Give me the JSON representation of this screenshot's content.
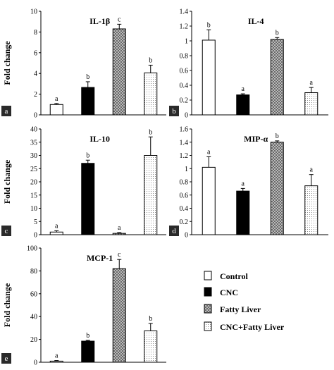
{
  "ylabel": "Fold change",
  "legend": {
    "entries": [
      {
        "label": "Control",
        "style": "white"
      },
      {
        "label": "CNC",
        "style": "black"
      },
      {
        "label": "Fatty Liver",
        "style": "crosshatch"
      },
      {
        "label": "CNC+Fatty Liver",
        "style": "dots"
      }
    ]
  },
  "chart_data": [
    {
      "type": "bar",
      "panel": "a",
      "title": "IL-1β",
      "categories": [
        "Control",
        "CNC",
        "Fatty Liver",
        "CNC+Fatty Liver"
      ],
      "values": [
        1,
        2.65,
        8.3,
        4.05
      ],
      "errors": [
        0.1,
        0.55,
        0.45,
        0.75
      ],
      "labels": [
        "a",
        "b",
        "c",
        "b"
      ],
      "ylim": [
        0,
        10
      ],
      "yticks": [
        "0",
        "2",
        "4",
        "6",
        "8",
        "10"
      ]
    },
    {
      "type": "bar",
      "panel": "b",
      "title": "IL-4",
      "categories": [
        "Control",
        "CNC",
        "Fatty Liver",
        "CNC+Fatty Liver"
      ],
      "values": [
        1.01,
        0.27,
        1.02,
        0.3
      ],
      "errors": [
        0.14,
        0.015,
        0.025,
        0.07
      ],
      "labels": [
        "b",
        "a",
        "b",
        "a"
      ],
      "ylim": [
        0,
        1.4
      ],
      "yticks": [
        "0",
        "0.2",
        "0.4",
        "0.6",
        "0.8",
        "1",
        "1.2",
        "1.4"
      ]
    },
    {
      "type": "bar",
      "panel": "c",
      "title": "IL-10",
      "categories": [
        "Control",
        "CNC",
        "Fatty Liver",
        "CNC+Fatty Liver"
      ],
      "values": [
        1,
        27,
        0.5,
        30
      ],
      "errors": [
        0.5,
        1.2,
        0.3,
        7
      ],
      "labels": [
        "a",
        "b",
        "a",
        "b"
      ],
      "ylim": [
        0,
        40
      ],
      "yticks": [
        "0",
        "5",
        "10",
        "15",
        "20",
        "25",
        "30",
        "35",
        "40"
      ]
    },
    {
      "type": "bar",
      "panel": "d",
      "title": "MIP-α",
      "categories": [
        "Control",
        "CNC",
        "Fatty Liver",
        "CNC+Fatty Liver"
      ],
      "values": [
        1.02,
        0.66,
        1.4,
        0.74
      ],
      "errors": [
        0.16,
        0.04,
        0.02,
        0.17
      ],
      "labels": [
        "a",
        "a",
        "b",
        "a"
      ],
      "ylim": [
        0,
        1.6
      ],
      "yticks": [
        "0",
        "0.2",
        "0.4",
        "0.6",
        "0.8",
        "1",
        "1.2",
        "1.4",
        "1.6"
      ]
    },
    {
      "type": "bar",
      "panel": "e",
      "title": "MCP-1",
      "categories": [
        "Control",
        "CNC",
        "Fatty Liver",
        "CNC+Fatty Liver"
      ],
      "values": [
        1,
        18.5,
        82,
        27.5
      ],
      "errors": [
        0.5,
        0.7,
        8,
        6.5
      ],
      "labels": [
        "a",
        "b",
        "c",
        "b"
      ],
      "ylim": [
        0,
        100
      ],
      "yticks": [
        "0",
        "20",
        "40",
        "60",
        "80",
        "100"
      ]
    }
  ]
}
